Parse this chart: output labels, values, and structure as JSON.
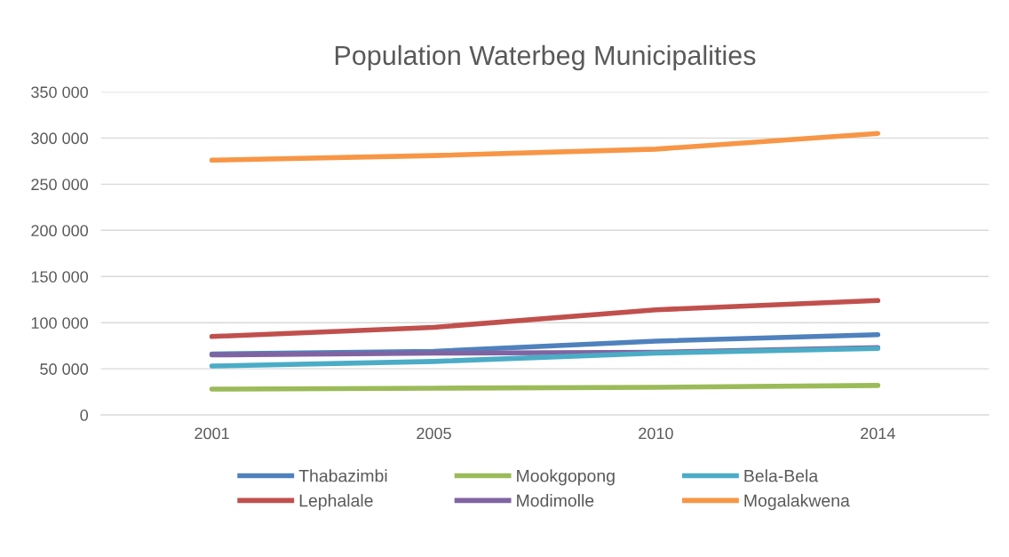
{
  "chart_data": {
    "type": "line",
    "title": "Population Waterbeg Municipalities",
    "categories": [
      "2001",
      "2005",
      "2010",
      "2014"
    ],
    "series": [
      {
        "name": "Thabazimbi",
        "color": "#4f81bd",
        "values": [
          66000,
          69000,
          80000,
          87000
        ]
      },
      {
        "name": "Lephalale",
        "color": "#c0504d",
        "values": [
          85000,
          95000,
          114000,
          124000
        ]
      },
      {
        "name": "Mookgopong",
        "color": "#9bbb59",
        "values": [
          28000,
          29000,
          30000,
          32000
        ]
      },
      {
        "name": "Modimolle",
        "color": "#8064a2",
        "values": [
          65000,
          67000,
          68000,
          73000
        ]
      },
      {
        "name": "Bela-Bela",
        "color": "#4bacc6",
        "values": [
          53000,
          58000,
          67000,
          72000
        ]
      },
      {
        "name": "Mogalakwena",
        "color": "#f79646",
        "values": [
          276000,
          281000,
          288000,
          305000
        ]
      }
    ],
    "ylim": [
      0,
      350000
    ],
    "yticks": [
      {
        "value": 0,
        "label": "0"
      },
      {
        "value": 50000,
        "label": "50 000"
      },
      {
        "value": 100000,
        "label": "100 000"
      },
      {
        "value": 150000,
        "label": "150 000"
      },
      {
        "value": 200000,
        "label": "200 000"
      },
      {
        "value": 250000,
        "label": "250 000"
      },
      {
        "value": 300000,
        "label": "300 000"
      },
      {
        "value": 350000,
        "label": "350 000"
      }
    ],
    "grid": "y",
    "legend": "bottom",
    "marker": "none",
    "line_style": "solid"
  }
}
